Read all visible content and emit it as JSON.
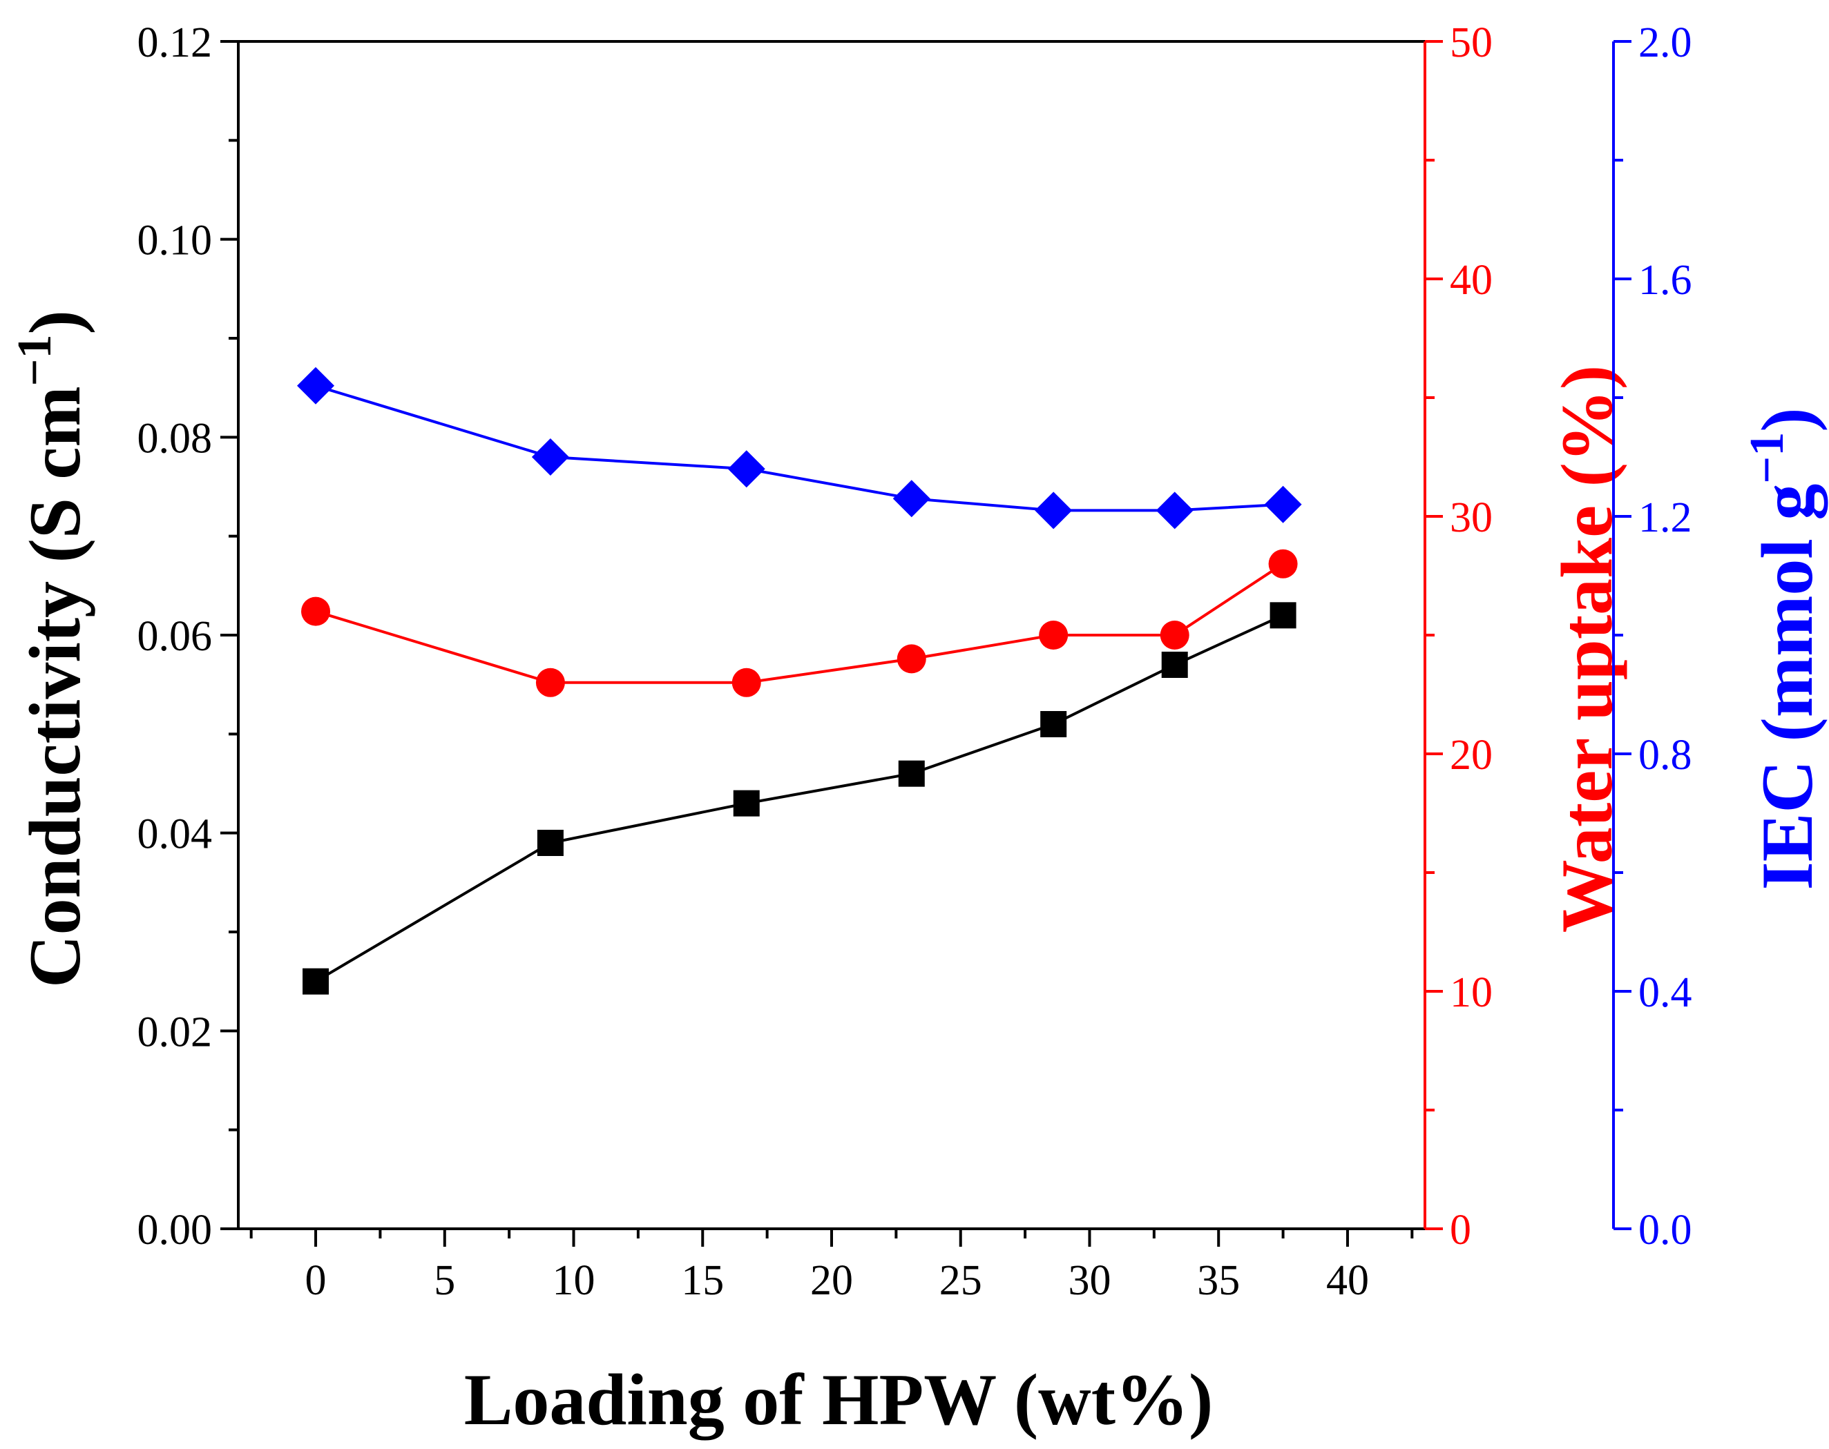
{
  "chart_data": {
    "type": "line",
    "title": "",
    "xlabel": "Loading of HPW (wt%)",
    "xlim": [
      -3,
      43
    ],
    "x_ticks": [
      "0",
      "5",
      "10",
      "15",
      "20",
      "25",
      "30",
      "35",
      "40"
    ],
    "x_tick_values": [
      0,
      5,
      10,
      15,
      20,
      25,
      30,
      35,
      40
    ],
    "x": [
      0,
      9.1,
      16.7,
      23.1,
      28.6,
      33.3,
      37.5
    ],
    "axes": [
      {
        "id": "left",
        "label_main": "Conductivity (S cm",
        "label_sup": "−1",
        "label_close": ")",
        "color": "#000000",
        "ylim": [
          0,
          0.12
        ],
        "ticks": [
          "0.00",
          "0.02",
          "0.04",
          "0.06",
          "0.08",
          "0.10",
          "0.12"
        ],
        "tick_values": [
          0,
          0.02,
          0.04,
          0.06,
          0.08,
          0.1,
          0.12
        ]
      },
      {
        "id": "right1",
        "label_main": "Water uptake (%)",
        "color": "#ff0000",
        "ylim": [
          0,
          50
        ],
        "ticks": [
          "0",
          "10",
          "20",
          "30",
          "40",
          "50"
        ],
        "tick_values": [
          0,
          10,
          20,
          30,
          40,
          50
        ]
      },
      {
        "id": "right2",
        "label_main": "IEC (mmol g",
        "label_sup": "−1",
        "label_close": ")",
        "color": "#0000ff",
        "ylim": [
          0,
          2.0
        ],
        "ticks": [
          "0.0",
          "0.4",
          "0.8",
          "1.2",
          "1.6",
          "2.0"
        ],
        "tick_values": [
          0,
          0.4,
          0.8,
          1.2,
          1.6,
          2.0
        ]
      }
    ],
    "series": [
      {
        "name": "Conductivity",
        "axis": "left",
        "marker": "square",
        "color": "#000000",
        "values": [
          0.025,
          0.039,
          0.043,
          0.046,
          0.051,
          0.057,
          0.062
        ]
      },
      {
        "name": "Water uptake",
        "axis": "right1",
        "marker": "circle",
        "color": "#ff0000",
        "values": [
          26.0,
          23.0,
          23.0,
          24.0,
          25.0,
          25.0,
          28.0
        ]
      },
      {
        "name": "IEC",
        "axis": "right2",
        "marker": "diamond",
        "color": "#0000ff",
        "values": [
          1.42,
          1.3,
          1.28,
          1.23,
          1.21,
          1.21,
          1.22
        ]
      }
    ]
  }
}
